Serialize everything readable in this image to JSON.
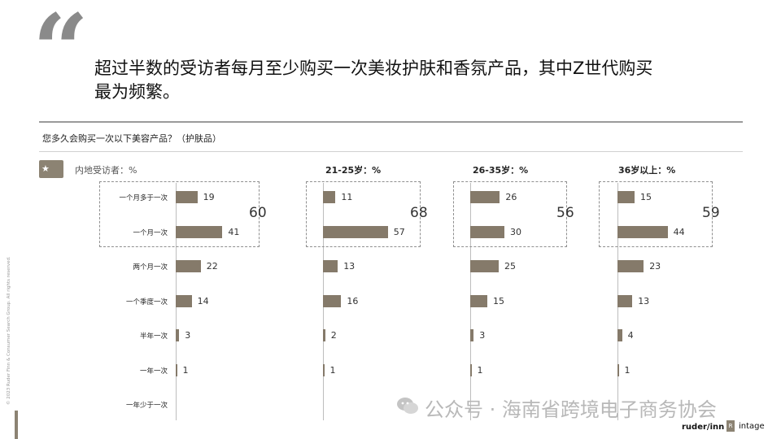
{
  "headline": {
    "quote_mark": "“",
    "text_line1": "超过半数的受访者每月至少购买一次美妆护肤和香氛产品，其中Z世代购买",
    "text_line2": "最为频繁。"
  },
  "question": "您多久会购买一次以下美容产品？（护肤品）",
  "icons": {
    "flag": "china-flag-icon",
    "watermark": "wechat-icon"
  },
  "colors": {
    "bar": "#857a6a",
    "accent": "#8c8373"
  },
  "chart_data": {
    "type": "bar",
    "orientation": "horizontal",
    "categories": [
      "一个月多于一次",
      "一个月一次",
      "两个月一次",
      "一个季度一次",
      "半年一次",
      "一年一次",
      "一年少于一次"
    ],
    "series": [
      {
        "name": "内地受访者：%",
        "values": [
          19,
          41,
          22,
          14,
          3,
          1,
          null
        ],
        "subtotal_top2": "60"
      },
      {
        "name": "21-25岁：%",
        "values": [
          11,
          57,
          13,
          16,
          2,
          1,
          null
        ],
        "subtotal_top2": "68"
      },
      {
        "name": "26-35岁：%",
        "values": [
          26,
          30,
          25,
          15,
          3,
          1,
          null
        ],
        "subtotal_top2": "56"
      },
      {
        "name": "36岁以上：%",
        "values": [
          15,
          44,
          23,
          13,
          4,
          1,
          null
        ],
        "subtotal_top2": "59"
      }
    ]
  },
  "footer": {
    "copyright": "© 2023 Ruder Finn & Consumer Search Group. All rights reserved.",
    "watermark_text": "公众号 · 海南省跨境电子商务协会",
    "logo_ruderfinn": "ruder/inn",
    "logo_intage": "intage"
  }
}
